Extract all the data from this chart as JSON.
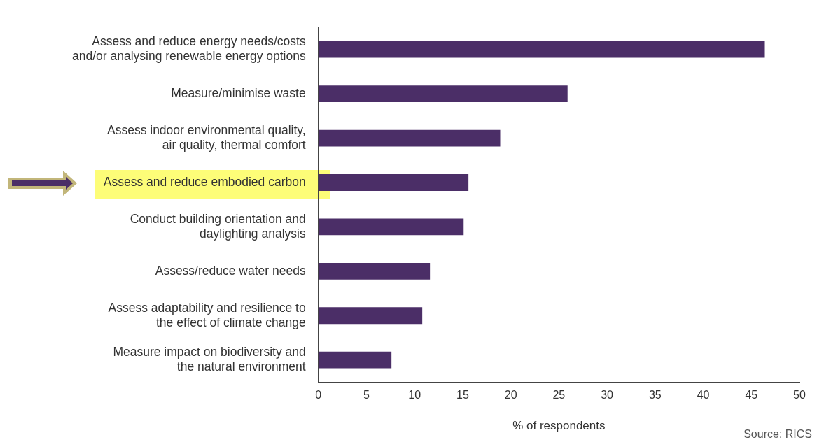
{
  "chart_data": {
    "type": "bar",
    "orientation": "horizontal",
    "categories": [
      "Assess and reduce energy needs/costs\nand/or analysing renewable energy options",
      "Measure/minimise waste",
      "Assess indoor environmental quality,\nair quality, thermal comfort",
      "Assess and reduce embodied carbon",
      "Conduct building orientation and\ndaylighting analysis",
      "Assess/reduce water needs",
      "Assess adaptability and resilience to\nthe effect of climate change",
      "Measure impact on biodiversity and\nthe natural environment"
    ],
    "values": [
      46.4,
      25.9,
      18.9,
      15.6,
      15.1,
      11.6,
      10.8,
      7.6
    ],
    "color": "#4b2e67",
    "xlim": [
      0,
      50
    ],
    "xticks": [
      0,
      5,
      10,
      15,
      20,
      25,
      30,
      35,
      40,
      45,
      50
    ],
    "xlabel": "% of respondents",
    "grid": false,
    "legend": false,
    "annotations": [
      "Source: RICS"
    ]
  }
}
